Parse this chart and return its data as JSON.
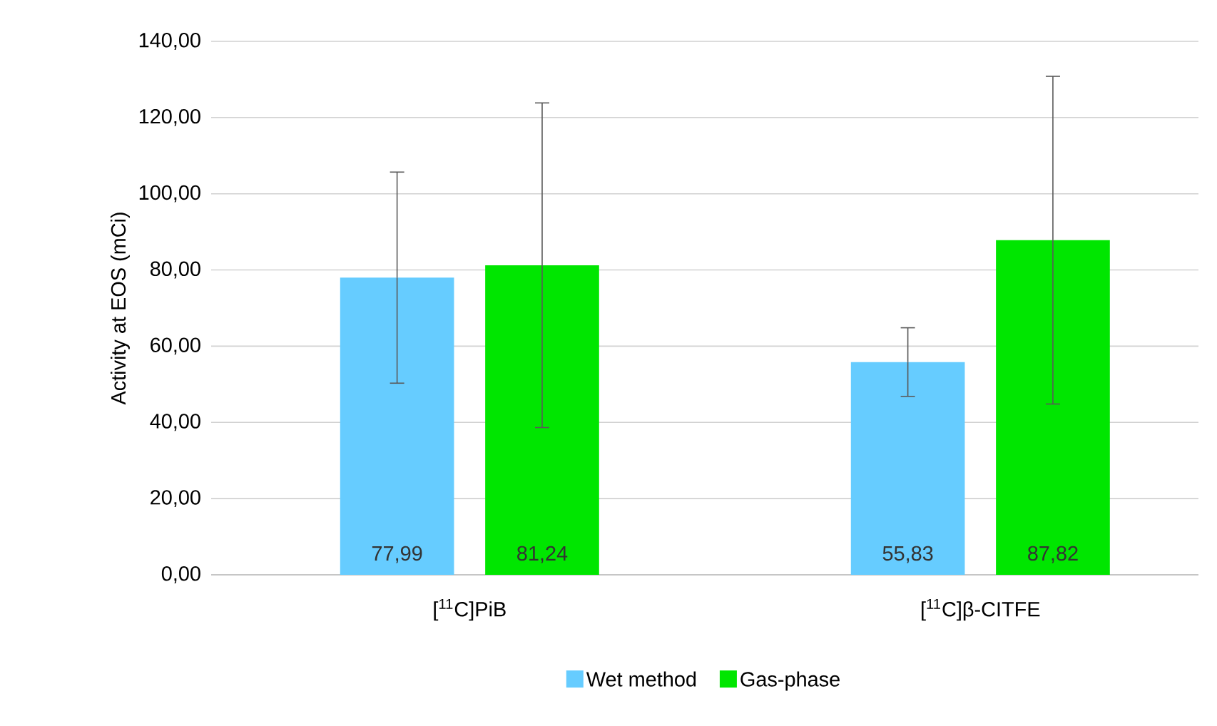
{
  "chart_data": {
    "type": "bar",
    "ylabel": "Activity at EOS (mCi)",
    "categories": [
      "[$^{11}$C]PiB",
      "[$^{11}$C]β-CITFE"
    ],
    "series": [
      {
        "name": "Wet method",
        "color": "#66ccff",
        "values": [
          77.99,
          55.83
        ],
        "errors": [
          27.7,
          9
        ],
        "value_labels": [
          "77,99",
          "55,83"
        ]
      },
      {
        "name": "Gas-phase",
        "color": "#00e600",
        "values": [
          81.24,
          87.82
        ],
        "errors": [
          42.6,
          43
        ],
        "value_labels": [
          "81,24",
          "87,82"
        ]
      }
    ],
    "ylim": [
      0,
      140
    ],
    "yticks": [
      {
        "value": 0,
        "label": "0,00"
      },
      {
        "value": 20,
        "label": "20,00"
      },
      {
        "value": 40,
        "label": "40,00"
      },
      {
        "value": 60,
        "label": "60,00"
      },
      {
        "value": 80,
        "label": "80,00"
      },
      {
        "value": 100,
        "label": "100,00"
      },
      {
        "value": 120,
        "label": "120,00"
      },
      {
        "value": 140,
        "label": "140,00"
      }
    ],
    "grid": "y",
    "legend": "bottom"
  }
}
